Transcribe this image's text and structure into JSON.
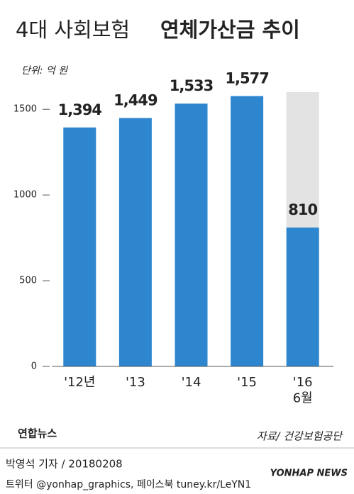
{
  "chart_data": {
    "type": "bar",
    "title": "4대 사회보험",
    "title_bold": "연체가산금 추이",
    "unit": "단위: 억 원",
    "categories": [
      "'12년",
      "'13",
      "'14",
      "'15",
      "'16\n6월"
    ],
    "values": [
      1394,
      1449,
      1533,
      1577,
      810
    ],
    "value_labels": [
      "1,394",
      "1,449",
      "1,533",
      "1,577",
      "810"
    ],
    "color": "#2e86cf",
    "ylim": [
      0,
      1600
    ],
    "yticks": [
      0,
      500,
      1000,
      1500
    ],
    "source": "자료/ 건강보험공단",
    "logo": "연합뉴스",
    "credit": "박영석 기자 / 20180208",
    "sns": "트위터 @yonhap_graphics, 페이스북 tuney.kr/LeYN1",
    "watermark": "YONHAP NEWS"
  }
}
